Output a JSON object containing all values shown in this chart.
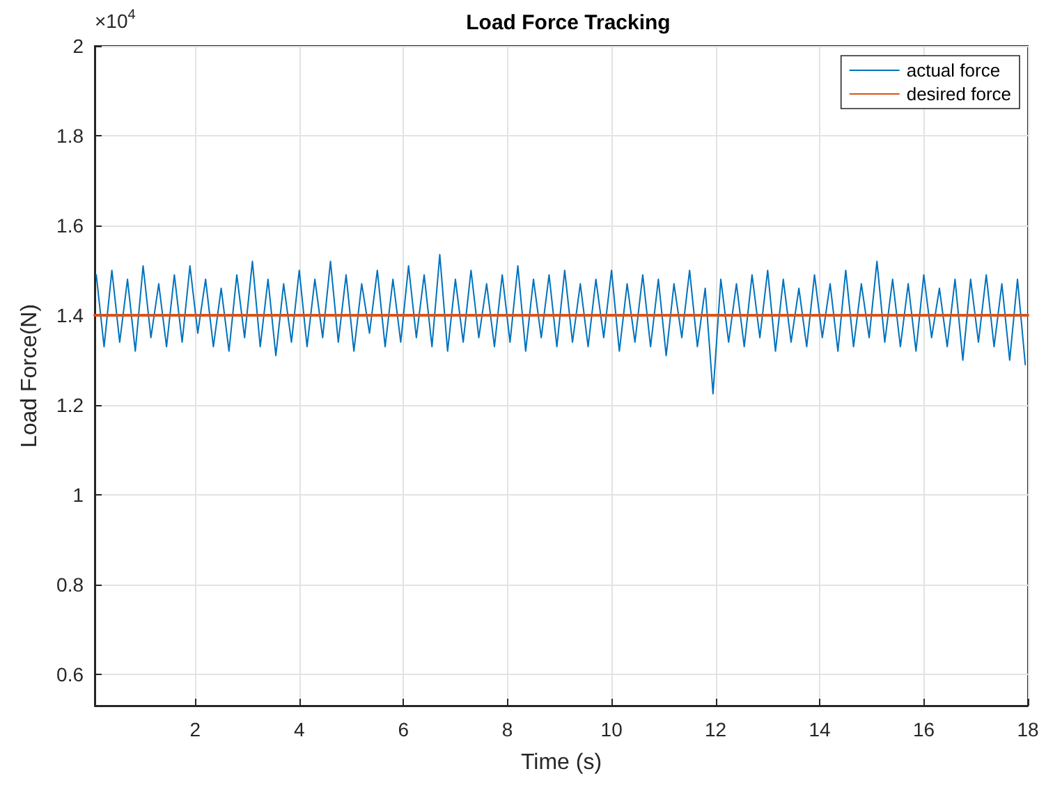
{
  "chart_data": {
    "type": "line",
    "title": "Load Force Tracking",
    "xlabel": "Time (s)",
    "ylabel": "Load Force(N)",
    "annotations": [
      "×10$^{4}$"
    ],
    "xlim": [
      0.07,
      18
    ],
    "xticks": [
      2,
      4,
      6,
      8,
      10,
      12,
      14,
      16,
      18
    ],
    "ylim": [
      0.53,
      2
    ],
    "yticks": [
      0.6,
      0.8,
      1,
      1.2,
      1.4,
      1.6,
      1.8,
      2
    ],
    "grid": true,
    "legend": "top right",
    "marker": "none",
    "line_style": "solid",
    "series": [
      {
        "name": "actual force",
        "color": "#0072bd",
        "x": [
          0.1,
          0.25,
          0.4,
          0.55,
          0.7,
          0.85,
          1,
          1.15,
          1.3,
          1.45,
          1.6,
          1.75,
          1.9,
          2.05,
          2.2,
          2.35,
          2.5,
          2.65,
          2.8,
          2.95,
          3.1,
          3.25,
          3.4,
          3.55,
          3.7,
          3.85,
          4,
          4.15,
          4.3,
          4.45,
          4.6,
          4.75,
          4.9,
          5.05,
          5.2,
          5.35,
          5.5,
          5.65,
          5.8,
          5.95,
          6.1,
          6.25,
          6.4,
          6.55,
          6.7,
          6.85,
          7,
          7.15,
          7.3,
          7.45,
          7.6,
          7.75,
          7.9,
          8.05,
          8.2,
          8.35,
          8.5,
          8.65,
          8.8,
          8.95,
          9.1,
          9.25,
          9.4,
          9.55,
          9.7,
          9.85,
          10,
          10.15,
          10.3,
          10.45,
          10.6,
          10.75,
          10.9,
          11.05,
          11.2,
          11.35,
          11.5,
          11.65,
          11.8,
          11.95,
          12.1,
          12.25,
          12.4,
          12.55,
          12.7,
          12.85,
          13,
          13.15,
          13.3,
          13.45,
          13.6,
          13.75,
          13.9,
          14.05,
          14.2,
          14.35,
          14.5,
          14.65,
          14.8,
          14.95,
          15.1,
          15.25,
          15.4,
          15.55,
          15.7,
          15.85,
          16,
          16.15,
          16.3,
          16.45,
          16.6,
          16.75,
          16.9,
          17.05,
          17.2,
          17.35,
          17.5,
          17.65,
          17.8,
          17.95
        ],
        "values": [
          1.49,
          1.33,
          1.5,
          1.34,
          1.48,
          1.32,
          1.51,
          1.35,
          1.47,
          1.33,
          1.49,
          1.34,
          1.51,
          1.36,
          1.48,
          1.33,
          1.46,
          1.32,
          1.49,
          1.35,
          1.52,
          1.33,
          1.48,
          1.31,
          1.47,
          1.34,
          1.5,
          1.33,
          1.48,
          1.35,
          1.52,
          1.34,
          1.49,
          1.32,
          1.47,
          1.36,
          1.5,
          1.33,
          1.48,
          1.34,
          1.51,
          1.35,
          1.49,
          1.33,
          1.535,
          1.32,
          1.48,
          1.34,
          1.5,
          1.35,
          1.47,
          1.33,
          1.49,
          1.34,
          1.51,
          1.32,
          1.48,
          1.35,
          1.49,
          1.33,
          1.5,
          1.34,
          1.47,
          1.33,
          1.48,
          1.35,
          1.5,
          1.32,
          1.47,
          1.34,
          1.49,
          1.33,
          1.48,
          1.31,
          1.47,
          1.35,
          1.5,
          1.33,
          1.46,
          1.225,
          1.48,
          1.34,
          1.47,
          1.33,
          1.49,
          1.35,
          1.5,
          1.32,
          1.48,
          1.34,
          1.46,
          1.33,
          1.49,
          1.35,
          1.47,
          1.32,
          1.5,
          1.33,
          1.47,
          1.35,
          1.52,
          1.34,
          1.48,
          1.33,
          1.47,
          1.32,
          1.49,
          1.35,
          1.46,
          1.33,
          1.48,
          1.3,
          1.48,
          1.34,
          1.49,
          1.33,
          1.47,
          1.3,
          1.48,
          1.29
        ]
      },
      {
        "name": "desired force",
        "color": "#d95319",
        "x": [
          0.07,
          18
        ],
        "values": [
          1.4,
          1.4
        ]
      }
    ]
  }
}
